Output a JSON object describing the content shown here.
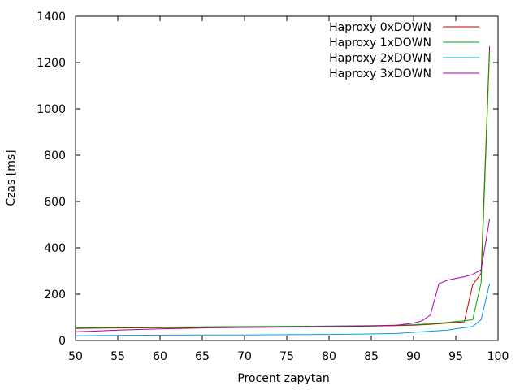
{
  "chart_data": {
    "type": "line",
    "xlabel": "Procent zapytan",
    "ylabel": "Czas [ms]",
    "xlim": [
      50,
      100
    ],
    "ylim": [
      0,
      1400
    ],
    "xticks": [
      50,
      55,
      60,
      65,
      70,
      75,
      80,
      85,
      90,
      95,
      100
    ],
    "yticks": [
      0,
      200,
      400,
      600,
      800,
      1000,
      1200,
      1400
    ],
    "grid": false,
    "legend_position": "top-right",
    "series": [
      {
        "name": "Haproxy 0xDOWN",
        "color": "#cc0000",
        "x": [
          50,
          52,
          55,
          60,
          65,
          70,
          75,
          80,
          85,
          88,
          90,
          92,
          94,
          95,
          96,
          97,
          98,
          99
        ],
        "y": [
          52,
          53,
          54,
          55,
          56,
          57,
          58,
          60,
          62,
          64,
          66,
          70,
          75,
          78,
          80,
          240,
          290,
          1270
        ]
      },
      {
        "name": "Haproxy 1xDOWN",
        "color": "#00aa00",
        "x": [
          50,
          52,
          55,
          60,
          65,
          70,
          75,
          80,
          85,
          88,
          90,
          92,
          94,
          95,
          96,
          97,
          98,
          99
        ],
        "y": [
          54,
          56,
          57,
          58,
          59,
          60,
          61,
          62,
          64,
          66,
          68,
          72,
          78,
          82,
          85,
          90,
          250,
          1250
        ]
      },
      {
        "name": "Haproxy 2xDOWN",
        "color": "#0099dd",
        "x": [
          50,
          55,
          60,
          65,
          70,
          75,
          80,
          85,
          88,
          90,
          92,
          94,
          95,
          96,
          97,
          98,
          99
        ],
        "y": [
          20,
          22,
          23,
          24,
          24,
          25,
          26,
          28,
          30,
          35,
          40,
          45,
          50,
          55,
          60,
          90,
          245
        ]
      },
      {
        "name": "Haproxy 3xDOWN",
        "color": "#aa00aa",
        "x": [
          50,
          52,
          55,
          60,
          65,
          70,
          75,
          80,
          85,
          88,
          90,
          91,
          92,
          93,
          94,
          95,
          96,
          97,
          98,
          99
        ],
        "y": [
          38,
          40,
          45,
          50,
          54,
          56,
          58,
          60,
          62,
          66,
          75,
          85,
          110,
          245,
          260,
          268,
          275,
          285,
          305,
          525
        ]
      }
    ]
  }
}
